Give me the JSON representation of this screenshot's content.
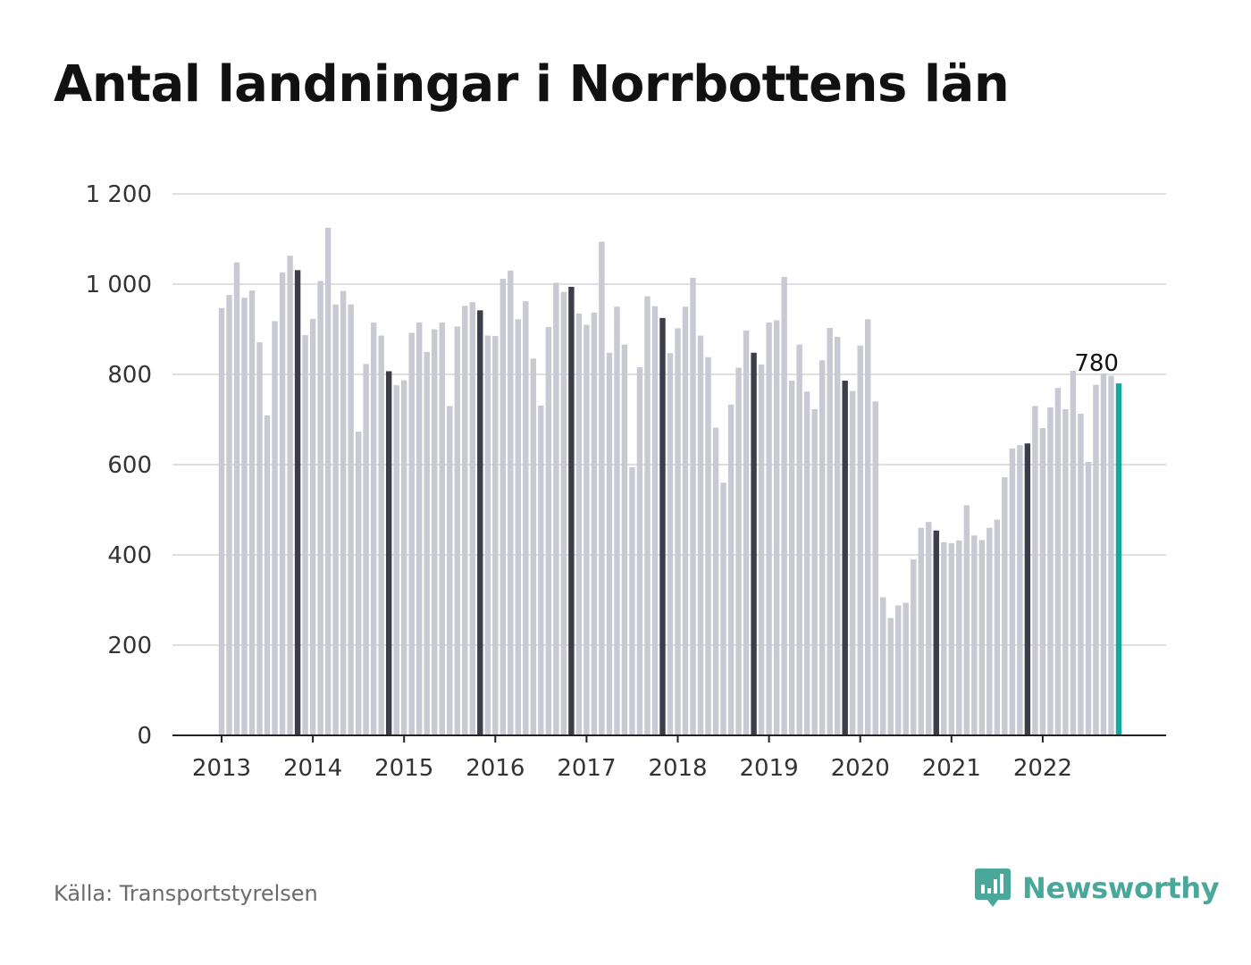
{
  "title": "Antal landningar i Norrbottens län",
  "source": "Källa: Transportstyrelsen",
  "brand": {
    "name": "Newsworthy",
    "icon": "bar-chart-speech-bubble-icon",
    "color": "#4aa89a"
  },
  "colors": {
    "bar": "#c9c9d4",
    "november_bar": "#3d3d4a",
    "latest_bar": "#13a89e",
    "grid": "#dedee3",
    "axis": "#222222"
  },
  "chart_data": {
    "type": "bar",
    "title": "Antal landningar i Norrbottens län",
    "xlabel": "",
    "ylabel": "",
    "ylim": [
      0,
      1200
    ],
    "yticks": [
      0,
      200,
      400,
      600,
      800,
      1000,
      1200
    ],
    "ytick_labels": [
      "0",
      "200",
      "400",
      "600",
      "800",
      "1 000",
      "1 200"
    ],
    "xtick_labels": [
      "2013",
      "2014",
      "2015",
      "2016",
      "2017",
      "2018",
      "2019",
      "2020",
      "2021",
      "2022"
    ],
    "grid": true,
    "start": "2013-01",
    "highlight_rule": "November bars dark; last bar accent",
    "annotation": {
      "text": "780",
      "target": "last"
    },
    "values": [
      947,
      976,
      1048,
      970,
      986,
      871,
      709,
      918,
      1026,
      1063,
      1031,
      887,
      923,
      1007,
      1125,
      955,
      985,
      955,
      673,
      823,
      915,
      886,
      807,
      776,
      787,
      892,
      915,
      850,
      900,
      915,
      730,
      906,
      952,
      960,
      942,
      886,
      885,
      1012,
      1030,
      922,
      962,
      835,
      731,
      905,
      1003,
      983,
      994,
      935,
      910,
      937,
      1094,
      848,
      950,
      866,
      594,
      816,
      973,
      951,
      925,
      847,
      902,
      950,
      1014,
      886,
      838,
      682,
      560,
      733,
      815,
      897,
      848,
      822,
      915,
      920,
      1016,
      786,
      866,
      762,
      723,
      831,
      903,
      883,
      786,
      763,
      864,
      922,
      740,
      306,
      260,
      288,
      294,
      390,
      460,
      473,
      454,
      428,
      426,
      432,
      510,
      443,
      433,
      460,
      478,
      572,
      636,
      643,
      647,
      730,
      681,
      727,
      770,
      723,
      808,
      713,
      606,
      777,
      802,
      797,
      780
    ]
  }
}
